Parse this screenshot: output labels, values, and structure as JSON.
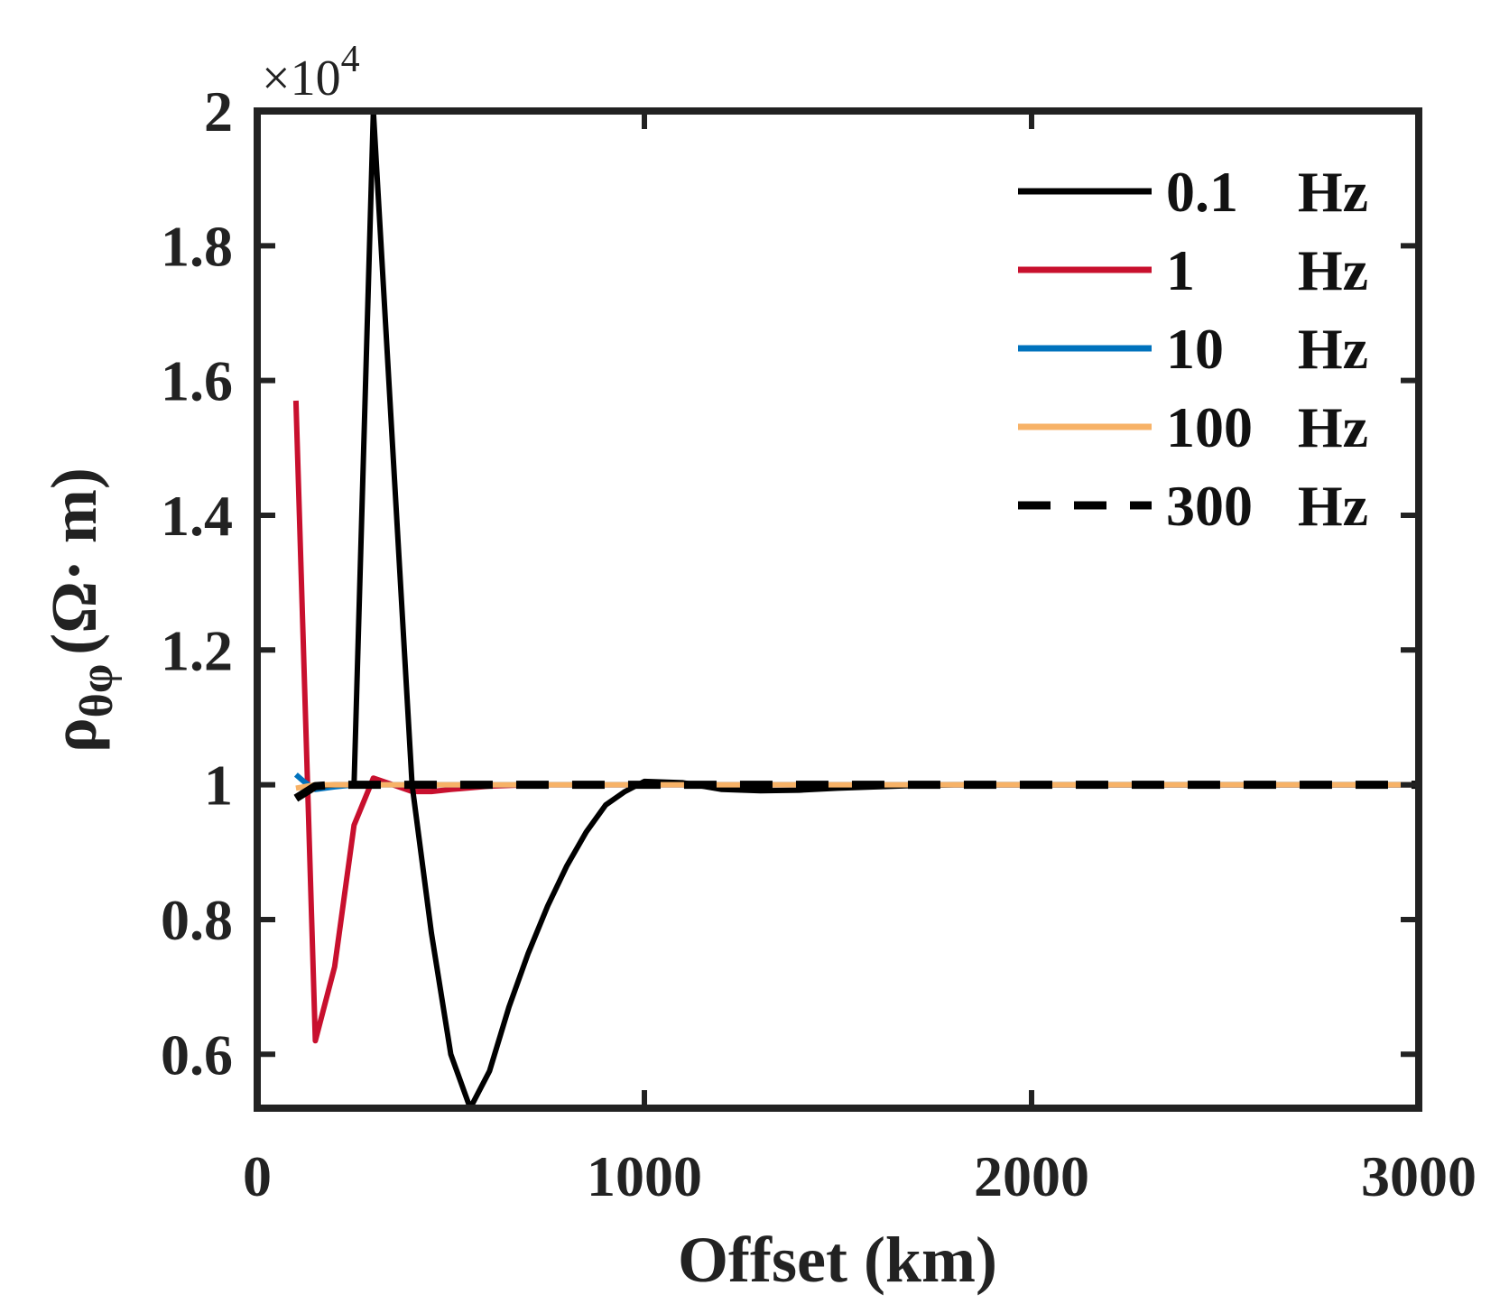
{
  "chart_data": {
    "type": "line",
    "xlabel": "Offset (km)",
    "ylabel_main": "ρ",
    "ylabel_sub": "θφ",
    "ylabel_unit": "(Ω· m)",
    "y_exponent": "×10",
    "y_exponent_power": "4",
    "xlim": [
      0,
      3000
    ],
    "ylim": [
      0.52,
      2.0
    ],
    "x_ticks": [
      0,
      1000,
      2000,
      3000
    ],
    "x_tick_labels": [
      "0",
      "1000",
      "2000",
      "3000"
    ],
    "y_ticks": [
      0.6,
      0.8,
      1.0,
      1.2,
      1.4,
      1.6,
      1.8,
      2.0
    ],
    "y_tick_labels": [
      "0.6",
      "0.8",
      "1",
      "1.2",
      "1.4",
      "1.6",
      "1.8",
      "2"
    ],
    "grid": false,
    "legend_position": "top-right",
    "series": [
      {
        "name": "0.1",
        "unit": "Hz",
        "color": "#000000",
        "dash": "solid",
        "x": [
          100,
          150,
          200,
          250,
          300,
          350,
          400,
          450,
          500,
          550,
          600,
          650,
          700,
          750,
          800,
          850,
          900,
          950,
          1000,
          1100,
          1200,
          1300,
          1400,
          1500,
          1600,
          1700,
          1800,
          2000,
          2500,
          3000
        ],
        "y": [
          0.98,
          0.998,
          1.0,
          1.0,
          2.0,
          1.5,
          1.0,
          0.78,
          0.6,
          0.52,
          0.575,
          0.67,
          0.75,
          0.82,
          0.88,
          0.93,
          0.97,
          0.99,
          1.005,
          1.003,
          0.993,
          0.991,
          0.992,
          0.995,
          0.997,
          0.999,
          1.0,
          1.0,
          1.0,
          1.0
        ]
      },
      {
        "name": "1",
        "unit": "Hz",
        "color": "#c8102e",
        "dash": "solid",
        "x": [
          100,
          150,
          200,
          250,
          300,
          350,
          400,
          450,
          500,
          600,
          700,
          800,
          1000,
          1500,
          2000,
          2500,
          3000
        ],
        "y": [
          1.57,
          0.62,
          0.73,
          0.94,
          1.01,
          1.0,
          0.99,
          0.99,
          0.993,
          0.998,
          1.0,
          1.0,
          1.0,
          1.0,
          1.0,
          1.0,
          1.0
        ]
      },
      {
        "name": "10",
        "unit": "Hz",
        "color": "#0072bd",
        "dash": "solid",
        "x": [
          100,
          120,
          150,
          200,
          250,
          300,
          500,
          1000,
          2000,
          3000
        ],
        "y": [
          1.015,
          1.005,
          0.993,
          0.997,
          1.0,
          1.0,
          1.0,
          1.0,
          1.0,
          1.0
        ]
      },
      {
        "name": "100",
        "unit": "Hz",
        "color": "#f7b267",
        "dash": "solid",
        "x": [
          100,
          150,
          200,
          500,
          1000,
          2000,
          3000
        ],
        "y": [
          0.995,
          1.0,
          1.0,
          1.0,
          1.0,
          1.0,
          1.0
        ]
      },
      {
        "name": "300",
        "unit": "Hz",
        "color": "#000000",
        "dash": "dashed",
        "x": [
          100,
          150,
          200,
          500,
          1000,
          2000,
          3000
        ],
        "y": [
          0.98,
          0.998,
          1.0,
          1.0,
          1.0,
          1.0,
          1.0
        ]
      }
    ]
  }
}
